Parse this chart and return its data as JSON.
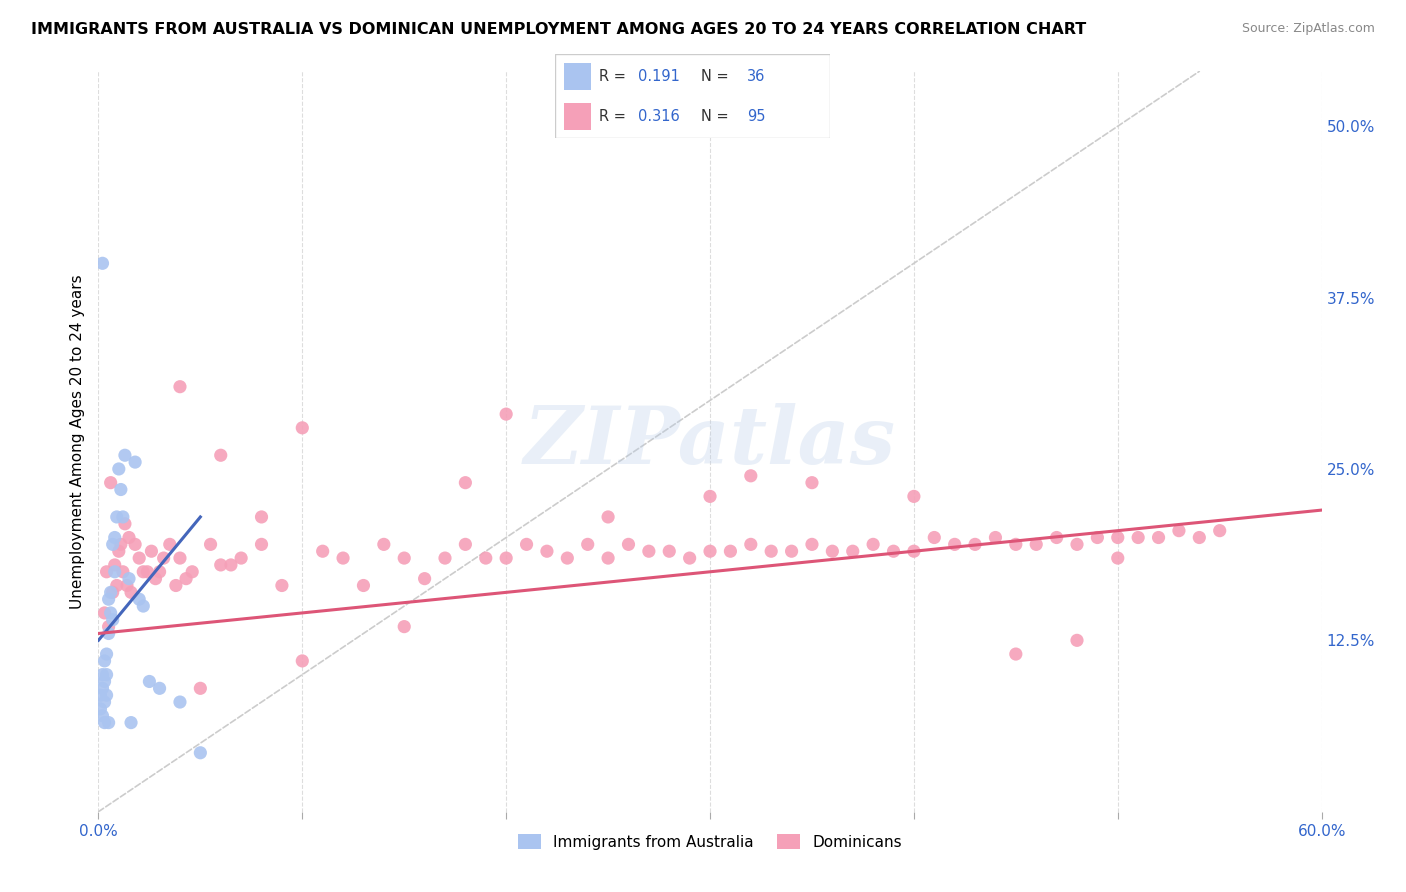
{
  "title": "IMMIGRANTS FROM AUSTRALIA VS DOMINICAN UNEMPLOYMENT AMONG AGES 20 TO 24 YEARS CORRELATION CHART",
  "source": "Source: ZipAtlas.com",
  "ylabel": "Unemployment Among Ages 20 to 24 years",
  "xlim": [
    0.0,
    0.6
  ],
  "ylim": [
    0.0,
    0.54
  ],
  "x_ticks": [
    0.0,
    0.1,
    0.2,
    0.3,
    0.4,
    0.5,
    0.6
  ],
  "x_tick_labels": [
    "0.0%",
    "",
    "",
    "",
    "",
    "",
    "60.0%"
  ],
  "y_ticks_right": [
    0.125,
    0.25,
    0.375,
    0.5
  ],
  "y_tick_labels_right": [
    "12.5%",
    "25.0%",
    "37.5%",
    "50.0%"
  ],
  "australia_R": "0.191",
  "australia_N": "36",
  "dominican_R": "0.316",
  "dominican_N": "95",
  "australia_color": "#aac4f0",
  "dominican_color": "#f5a0b8",
  "trendline_australia_color": "#4466bb",
  "trendline_dominican_color": "#dd5577",
  "diagonal_color": "#cccccc",
  "watermark": "ZIPatlas",
  "aus_trend_x": [
    0.0,
    0.05
  ],
  "aus_trend_y": [
    0.125,
    0.215
  ],
  "dom_trend_x": [
    0.0,
    0.6
  ],
  "dom_trend_y": [
    0.13,
    0.22
  ],
  "aus_x": [
    0.001,
    0.001,
    0.002,
    0.002,
    0.002,
    0.003,
    0.003,
    0.003,
    0.003,
    0.004,
    0.004,
    0.004,
    0.005,
    0.005,
    0.005,
    0.006,
    0.006,
    0.007,
    0.007,
    0.008,
    0.008,
    0.009,
    0.01,
    0.011,
    0.012,
    0.013,
    0.015,
    0.016,
    0.018,
    0.02,
    0.022,
    0.025,
    0.03,
    0.04,
    0.05,
    0.002
  ],
  "aus_y": [
    0.085,
    0.075,
    0.1,
    0.09,
    0.07,
    0.11,
    0.095,
    0.08,
    0.065,
    0.115,
    0.1,
    0.085,
    0.155,
    0.13,
    0.065,
    0.16,
    0.145,
    0.195,
    0.14,
    0.2,
    0.175,
    0.215,
    0.25,
    0.235,
    0.215,
    0.26,
    0.17,
    0.065,
    0.255,
    0.155,
    0.15,
    0.095,
    0.09,
    0.08,
    0.043,
    0.4
  ],
  "dom_x": [
    0.003,
    0.004,
    0.005,
    0.006,
    0.007,
    0.008,
    0.009,
    0.01,
    0.011,
    0.012,
    0.013,
    0.014,
    0.015,
    0.016,
    0.018,
    0.02,
    0.022,
    0.024,
    0.026,
    0.028,
    0.03,
    0.032,
    0.035,
    0.038,
    0.04,
    0.043,
    0.046,
    0.05,
    0.055,
    0.06,
    0.065,
    0.07,
    0.08,
    0.09,
    0.1,
    0.11,
    0.12,
    0.13,
    0.14,
    0.15,
    0.16,
    0.17,
    0.18,
    0.19,
    0.2,
    0.21,
    0.22,
    0.23,
    0.24,
    0.25,
    0.26,
    0.27,
    0.28,
    0.29,
    0.3,
    0.31,
    0.32,
    0.33,
    0.34,
    0.35,
    0.36,
    0.37,
    0.38,
    0.39,
    0.4,
    0.41,
    0.42,
    0.43,
    0.44,
    0.45,
    0.46,
    0.47,
    0.48,
    0.49,
    0.5,
    0.51,
    0.52,
    0.53,
    0.54,
    0.55,
    0.04,
    0.06,
    0.08,
    0.1,
    0.15,
    0.2,
    0.3,
    0.4,
    0.5,
    0.25,
    0.35,
    0.45,
    0.18,
    0.32,
    0.48
  ],
  "dom_y": [
    0.145,
    0.175,
    0.135,
    0.24,
    0.16,
    0.18,
    0.165,
    0.19,
    0.195,
    0.175,
    0.21,
    0.165,
    0.2,
    0.16,
    0.195,
    0.185,
    0.175,
    0.175,
    0.19,
    0.17,
    0.175,
    0.185,
    0.195,
    0.165,
    0.185,
    0.17,
    0.175,
    0.09,
    0.195,
    0.18,
    0.18,
    0.185,
    0.195,
    0.165,
    0.11,
    0.19,
    0.185,
    0.165,
    0.195,
    0.185,
    0.17,
    0.185,
    0.195,
    0.185,
    0.185,
    0.195,
    0.19,
    0.185,
    0.195,
    0.185,
    0.195,
    0.19,
    0.19,
    0.185,
    0.19,
    0.19,
    0.195,
    0.19,
    0.19,
    0.195,
    0.19,
    0.19,
    0.195,
    0.19,
    0.19,
    0.2,
    0.195,
    0.195,
    0.2,
    0.195,
    0.195,
    0.2,
    0.195,
    0.2,
    0.2,
    0.2,
    0.2,
    0.205,
    0.2,
    0.205,
    0.31,
    0.26,
    0.215,
    0.28,
    0.135,
    0.29,
    0.23,
    0.23,
    0.185,
    0.215,
    0.24,
    0.115,
    0.24,
    0.245,
    0.125
  ]
}
